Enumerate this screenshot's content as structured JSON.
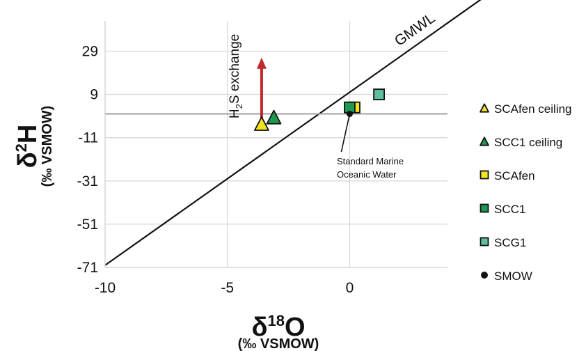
{
  "chart_data": {
    "type": "scatter",
    "xlabel": {
      "prefix": "δ",
      "sup": "18",
      "element": "O",
      "unit": "(‰ VSMOW)"
    },
    "ylabel": {
      "prefix": "δ",
      "sup": "2",
      "element": "H",
      "unit": "(‰ VSMOW)"
    },
    "xlim": [
      -10,
      4
    ],
    "ylim": [
      -71,
      43
    ],
    "x_ticks": [
      -10,
      -5,
      0
    ],
    "y_ticks": [
      -71,
      -51,
      -31,
      -11,
      9,
      29
    ],
    "grid": true,
    "legend_position": "right",
    "reference_lines": [
      {
        "label": "GMWL",
        "slope": 8,
        "intercept": 10,
        "color": "#111111"
      },
      {
        "label": "",
        "type": "horizontal",
        "y": 0,
        "color": "#a0a0a0"
      }
    ],
    "series": [
      {
        "name": "SCAfen ceiling",
        "marker": "triangle",
        "color": "#f2e421",
        "points": [
          [
            -3.6,
            -4.5
          ]
        ]
      },
      {
        "name": "SCC1 ceiling",
        "marker": "triangle",
        "color": "#1f9950",
        "points": [
          [
            -3.1,
            -1.5
          ]
        ]
      },
      {
        "name": "SCAfen",
        "marker": "square",
        "color": "#f2e421",
        "points": [
          [
            0.2,
            3
          ]
        ]
      },
      {
        "name": "SCC1",
        "marker": "square",
        "color": "#1f9950",
        "points": [
          [
            0.0,
            3
          ]
        ]
      },
      {
        "name": "SCG1",
        "marker": "square",
        "color": "#5cbf9f",
        "points": [
          [
            1.2,
            9
          ]
        ]
      },
      {
        "name": "SMOW",
        "marker": "circle",
        "color": "#111111",
        "points": [
          [
            0,
            0
          ]
        ]
      }
    ],
    "annotations": [
      {
        "id": "h2s",
        "text_main": "H",
        "text_sub": "2",
        "text_rest": "S exchange",
        "arrow_x": -3.6,
        "arrow_from": -3,
        "arrow_to": 26,
        "color": "#c0282d"
      },
      {
        "id": "smow",
        "line1": "Standard Marine",
        "line2": "Oceanic Water",
        "x": 0,
        "y": 0
      }
    ]
  }
}
